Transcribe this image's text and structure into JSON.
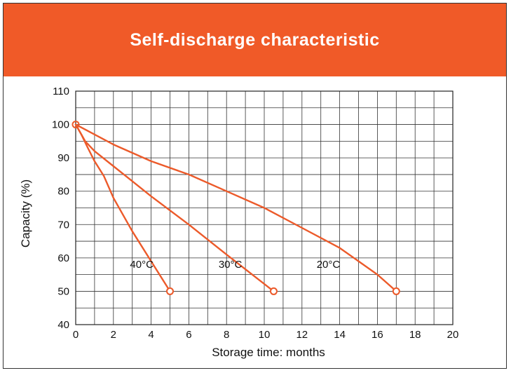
{
  "title": "Self-discharge characteristic",
  "colors": {
    "header": "#f05a28",
    "series": "#ec5a2a",
    "grid": "#333333"
  },
  "chart_data": {
    "type": "line",
    "xlabel": "Storage time: months",
    "ylabel": "Capacity (%)",
    "xlim": [
      0,
      20
    ],
    "ylim": [
      40,
      110
    ],
    "xticks": [
      0,
      2,
      4,
      6,
      8,
      10,
      12,
      14,
      16,
      18,
      20
    ],
    "yticks": [
      40,
      50,
      60,
      70,
      80,
      90,
      100,
      110
    ],
    "grid": true,
    "series": [
      {
        "name": "40°C",
        "label_at": [
          3.5,
          57
        ],
        "points": [
          [
            0,
            100
          ],
          [
            0.3,
            97
          ],
          [
            0.6,
            93.5
          ],
          [
            1,
            89
          ],
          [
            1.5,
            84.5
          ],
          [
            2,
            78
          ],
          [
            3,
            68
          ],
          [
            4,
            59
          ],
          [
            5,
            50
          ]
        ]
      },
      {
        "name": "30°C",
        "label_at": [
          8.2,
          57
        ],
        "points": [
          [
            0,
            100
          ],
          [
            0.5,
            95
          ],
          [
            1,
            92
          ],
          [
            2,
            87.5
          ],
          [
            3,
            83
          ],
          [
            4,
            78.5
          ],
          [
            6,
            70
          ],
          [
            8,
            61
          ],
          [
            10.5,
            50
          ]
        ]
      },
      {
        "name": "20°C",
        "label_at": [
          13.4,
          57
        ],
        "points": [
          [
            0,
            100
          ],
          [
            1,
            97
          ],
          [
            2,
            94
          ],
          [
            3,
            91.5
          ],
          [
            4,
            89
          ],
          [
            6,
            85
          ],
          [
            8,
            80
          ],
          [
            10,
            75
          ],
          [
            12,
            69
          ],
          [
            14,
            63
          ],
          [
            16,
            55
          ],
          [
            17,
            50
          ]
        ]
      }
    ]
  }
}
